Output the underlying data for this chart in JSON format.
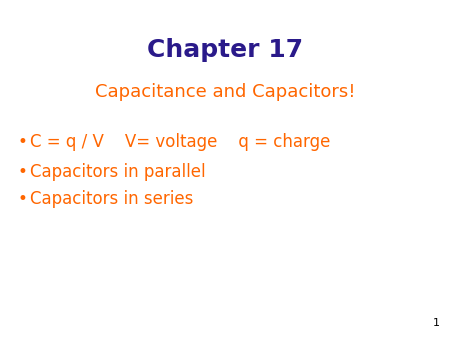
{
  "title": "Chapter 17",
  "title_color": "#2a1a8a",
  "subtitle": "Capacitance and Capacitors!",
  "subtitle_color": "#ff6600",
  "bullet_color": "#ff6600",
  "bullet_points": [
    "C = q / V    V= voltage    q = charge",
    "Capacitors in parallel",
    "Capacitors in series"
  ],
  "background_color": "#ffffff",
  "page_number": "1",
  "page_number_color": "#000000",
  "title_fontsize": 18,
  "subtitle_fontsize": 13,
  "bullet_fontsize": 12,
  "page_number_fontsize": 8
}
